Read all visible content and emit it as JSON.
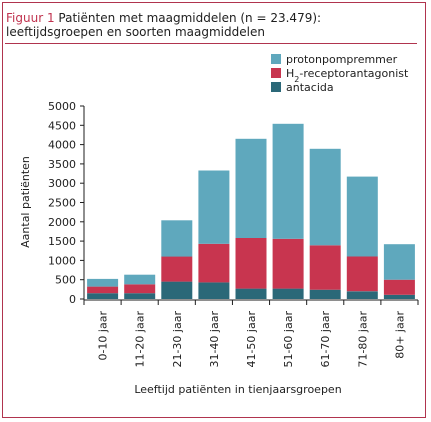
{
  "figure": {
    "label": "Figuur 1",
    "title": "Patiënten met maagmiddelen (n = 23.479): leeftijdsgroepen en soorten maagmiddelen"
  },
  "colors": {
    "frame": "#b0344e",
    "title_label": "#c0334f"
  },
  "chart_data": {
    "type": "bar",
    "stacked": true,
    "categories": [
      "0-10 jaar",
      "11-20 jaar",
      "21-30 jaar",
      "31-40 jaar",
      "41-50 jaar",
      "51-60 jaar",
      "61-70 jaar",
      "71-80 jaar",
      "80+ jaar"
    ],
    "series": [
      {
        "name": "antacida",
        "color": "#2b6878",
        "values": [
          150,
          150,
          450,
          430,
          270,
          270,
          240,
          200,
          110
        ]
      },
      {
        "name": "H₂-receptorantagonist",
        "color": "#c8354f",
        "values": [
          170,
          230,
          650,
          1000,
          1310,
          1290,
          1150,
          900,
          390
        ]
      },
      {
        "name": "protonpompremmer",
        "color": "#5fa8bd",
        "values": [
          200,
          250,
          940,
          1900,
          2570,
          2980,
          2500,
          2070,
          920
        ]
      }
    ],
    "legend_order": [
      "protonpompremmer",
      "H₂-receptorantagonist",
      "antacida"
    ],
    "legend_labels": {
      "protonpompremmer": "protonpompremmer",
      "h2_prefix": "H",
      "h2_sub": "2",
      "h2_suffix": "-receptorantagonist",
      "antacida": "antacida"
    },
    "legend_position": "top-right",
    "xlabel": "Leeftijd patiënten in tienjaarsgroepen",
    "ylabel": "Aantal patiënten",
    "ylim": [
      0,
      5000
    ],
    "yticks": [
      0,
      500,
      1000,
      1500,
      2000,
      2500,
      3000,
      3500,
      4000,
      4500,
      5000
    ],
    "grid": false
  }
}
